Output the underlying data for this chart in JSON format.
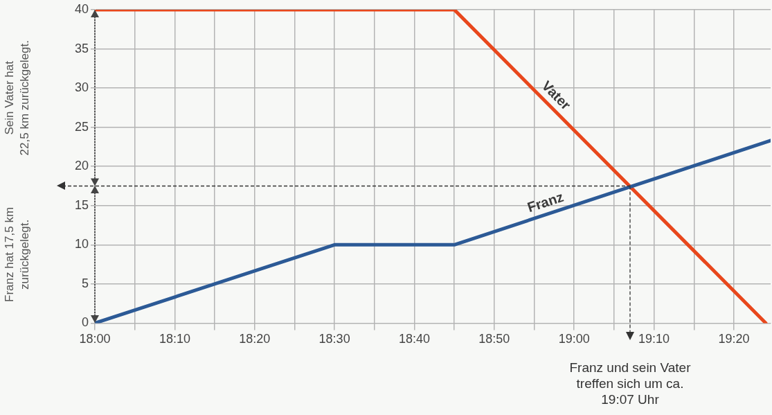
{
  "chart_data": {
    "type": "line",
    "series": [
      {
        "name": "Franz",
        "color": "#2c5a96",
        "x": [
          18,
          18.5,
          18.75,
          19.41
        ],
        "values": [
          0,
          10,
          10,
          23.3
        ]
      },
      {
        "name": "Vater",
        "color": "#e8471c",
        "x": [
          18,
          18.75,
          19.4
        ],
        "values": [
          40,
          40,
          0
        ]
      }
    ],
    "xlim": [
      18,
      19.41
    ],
    "xticks": [
      {
        "value": 18,
        "label": "18:00"
      },
      {
        "value": 18.0833,
        "label": null
      },
      {
        "value": 18.1667,
        "label": "18:10"
      },
      {
        "value": 18.25,
        "label": null
      },
      {
        "value": 18.3333,
        "label": "18:20"
      },
      {
        "value": 18.4167,
        "label": null
      },
      {
        "value": 18.5,
        "label": "18:30"
      },
      {
        "value": 18.5833,
        "label": null
      },
      {
        "value": 18.6667,
        "label": "18:40"
      },
      {
        "value": 18.75,
        "label": null
      },
      {
        "value": 18.8333,
        "label": "18:50"
      },
      {
        "value": 18.9167,
        "label": null
      },
      {
        "value": 19,
        "label": "19:00"
      },
      {
        "value": 19.0833,
        "label": null
      },
      {
        "value": 19.1667,
        "label": "19:10"
      },
      {
        "value": 19.25,
        "label": null
      },
      {
        "value": 19.3333,
        "label": "19:20"
      }
    ],
    "ylim": [
      0,
      40
    ],
    "yticks": [
      0,
      5,
      10,
      15,
      20,
      25,
      30,
      35,
      40
    ],
    "grid": true,
    "legend": false,
    "marker": "none",
    "line_style": "solid",
    "ref_lines": [
      {
        "axis": "y",
        "value": 17.5,
        "color": "#333333",
        "line_style": "dashed"
      },
      {
        "axis": "x",
        "value": 19.1167,
        "color": "#333333",
        "line_style": "dashed"
      }
    ],
    "annotations": [
      "Sein Vater hat\n22,5 km zurückgelegt.",
      "Franz hat 17,5 km\nzurückgelegt.",
      "Franz und sein Vater\ntreffen sich um ca.\n19:07 Uhr"
    ]
  }
}
